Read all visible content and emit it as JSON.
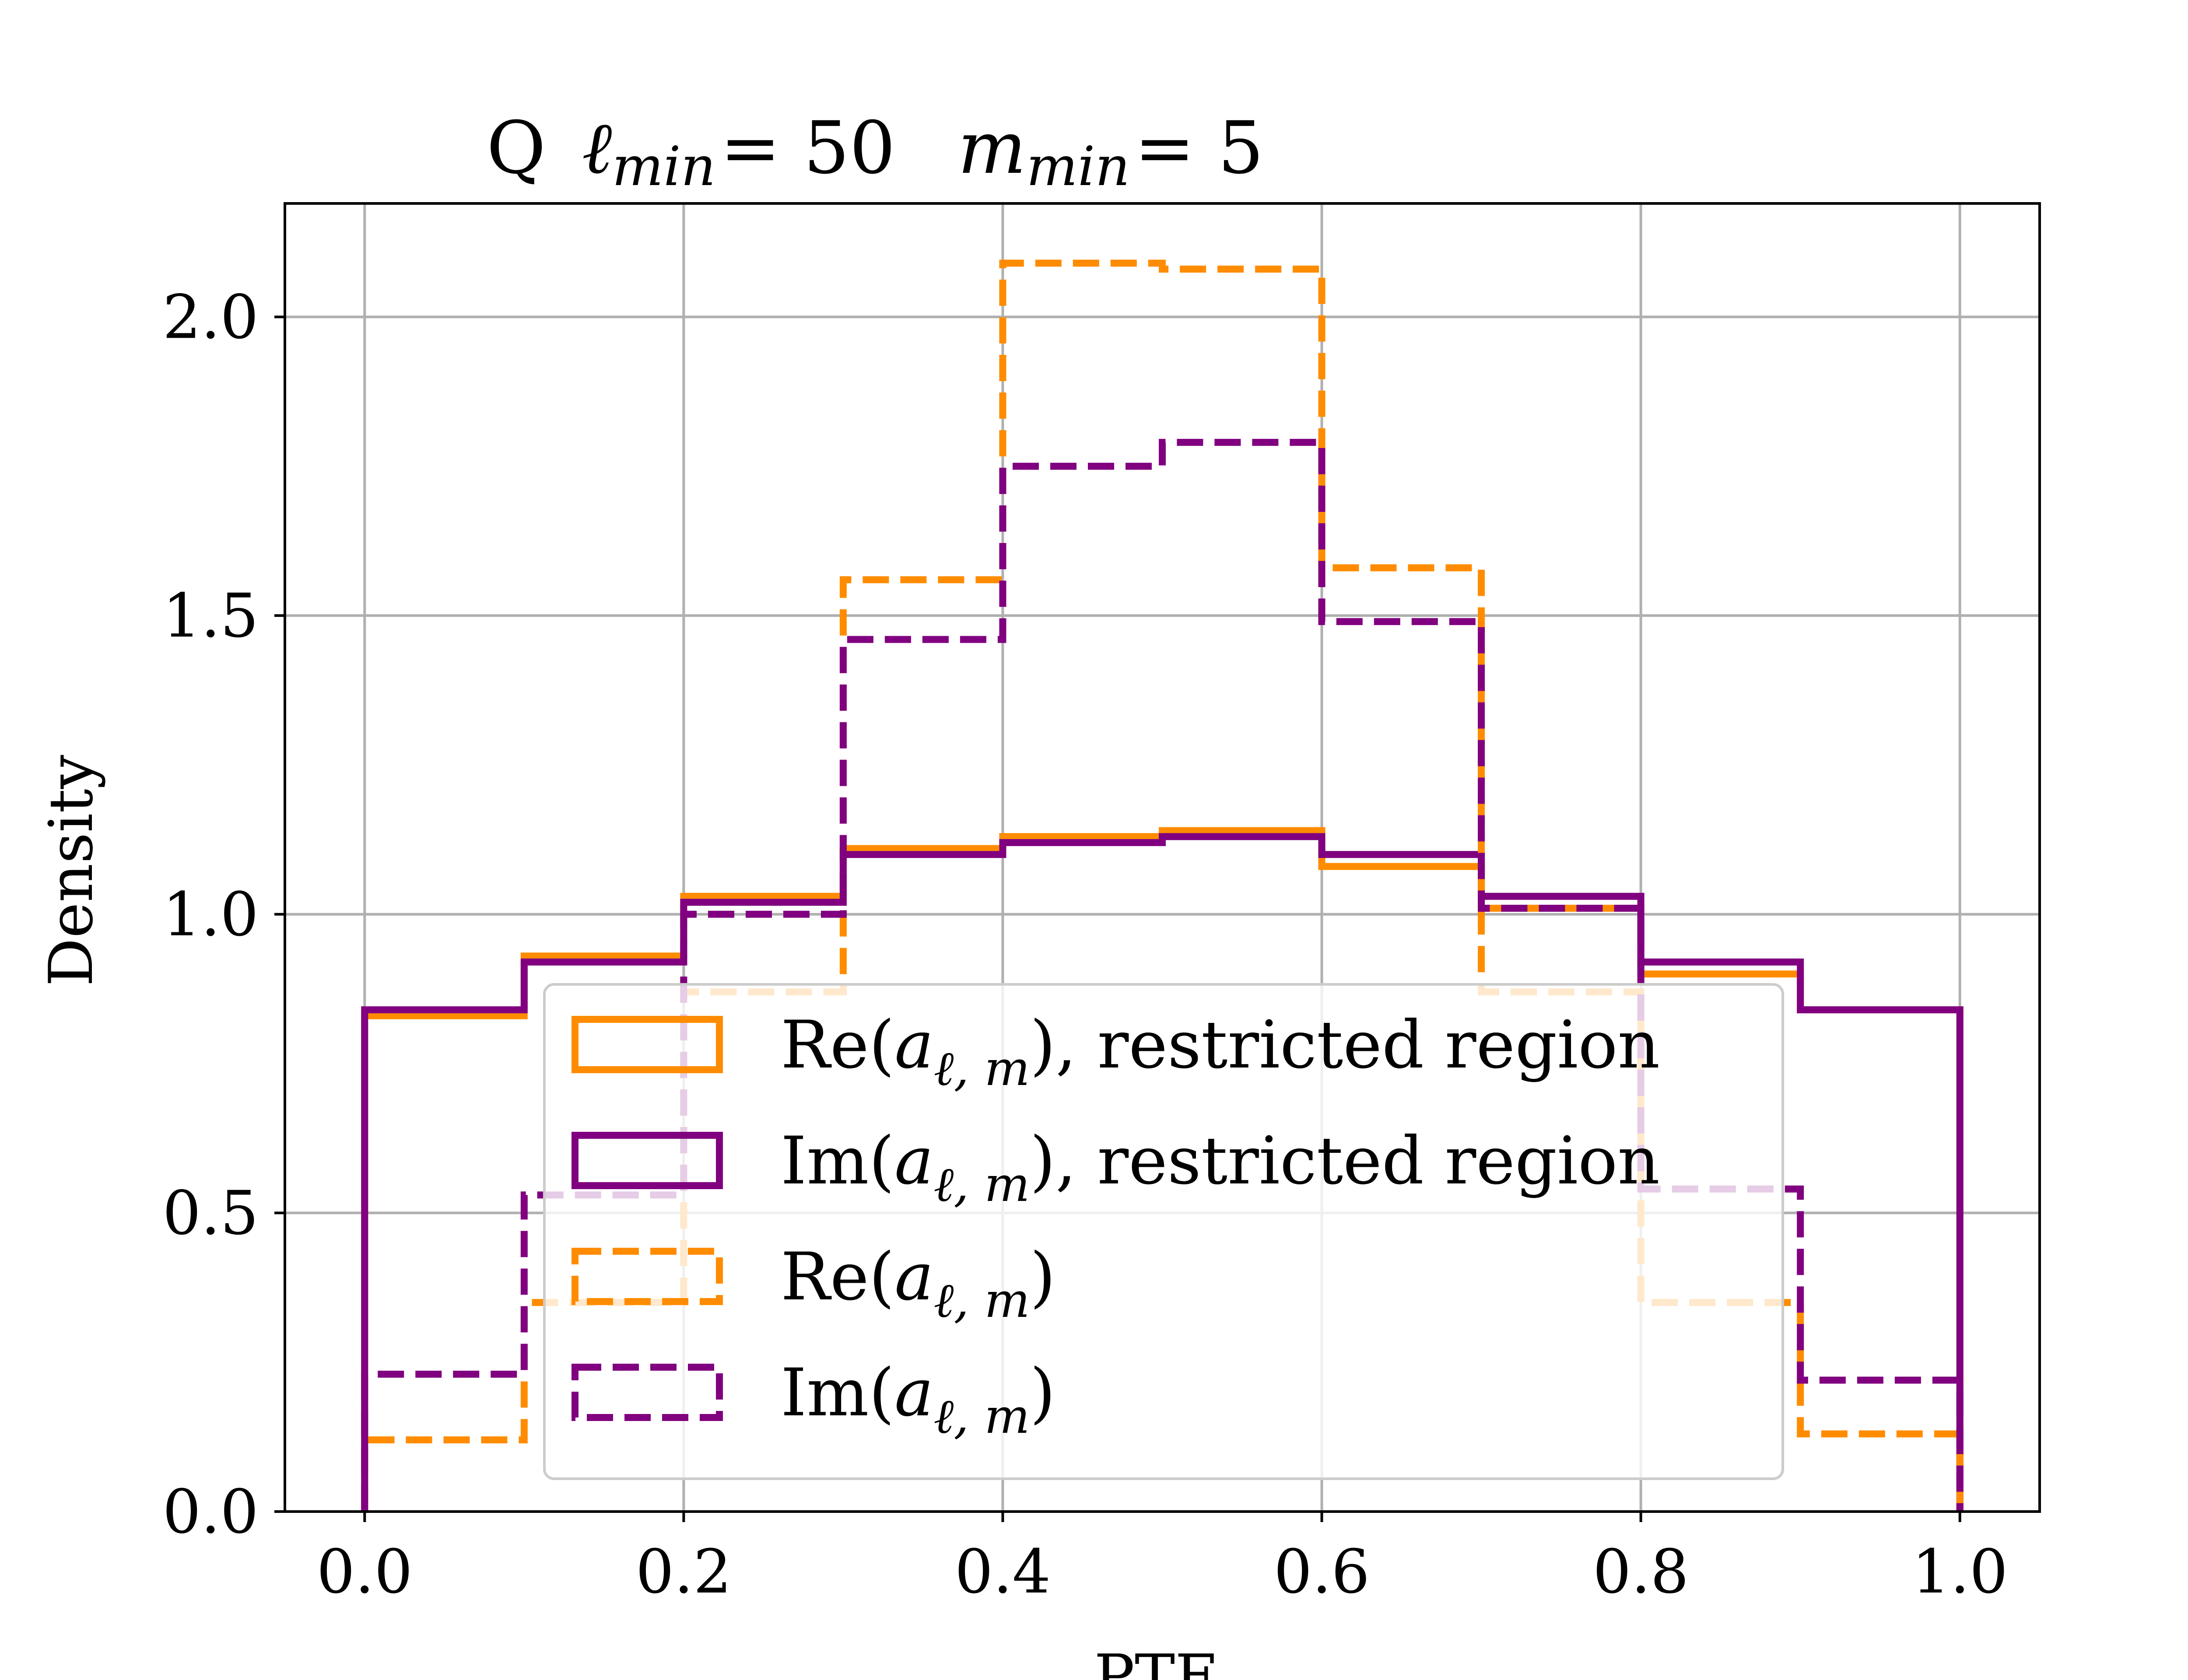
{
  "chart_data": {
    "type": "histogram-step",
    "title": {
      "prefix": "Q",
      "ell_symbol": "ℓ",
      "ell_sub": "min",
      "ell_value": "= 50",
      "m_symbol": "m",
      "m_sub": "min",
      "m_value": "= 5"
    },
    "xlabel": "PTE",
    "ylabel": "Density",
    "xlim": [
      -0.05,
      1.05
    ],
    "ylim": [
      0.0,
      2.19
    ],
    "grid": true,
    "x_ticks": [
      "0.0",
      "0.2",
      "0.4",
      "0.6",
      "0.8",
      "1.0"
    ],
    "y_ticks": [
      "0.0",
      "0.5",
      "1.0",
      "1.5",
      "2.0"
    ],
    "bin_edges": [
      0.0,
      0.1,
      0.2,
      0.3,
      0.4,
      0.5,
      0.6,
      0.7,
      0.8,
      0.9,
      1.0
    ],
    "legend": {
      "position": "lower center"
    },
    "series": [
      {
        "key": "re_restricted",
        "label_prefix": "Re(",
        "label_suffix": "), restricted region",
        "color": "#ff8c00",
        "style": "solid",
        "values": [
          0.83,
          0.93,
          1.03,
          1.11,
          1.13,
          1.14,
          1.08,
          1.01,
          0.9,
          0.84
        ]
      },
      {
        "key": "im_restricted",
        "label_prefix": "Im(",
        "label_suffix": "), restricted region",
        "color": "#800080",
        "style": "solid",
        "values": [
          0.84,
          0.92,
          1.02,
          1.1,
          1.12,
          1.13,
          1.1,
          1.03,
          0.92,
          0.84
        ]
      },
      {
        "key": "re_full",
        "label_prefix": "Re(",
        "label_suffix": ")",
        "color": "#ff8c00",
        "style": "dashed",
        "values": [
          0.12,
          0.35,
          0.87,
          1.56,
          2.09,
          2.08,
          1.58,
          0.87,
          0.35,
          0.13
        ]
      },
      {
        "key": "im_full",
        "label_prefix": "Im(",
        "label_suffix": ")",
        "color": "#800080",
        "style": "dashed",
        "values": [
          0.23,
          0.53,
          1.0,
          1.46,
          1.75,
          1.79,
          1.49,
          1.01,
          0.54,
          0.22
        ]
      }
    ],
    "legend_symbol": {
      "a": "a",
      "sub": "ℓ, m"
    }
  }
}
